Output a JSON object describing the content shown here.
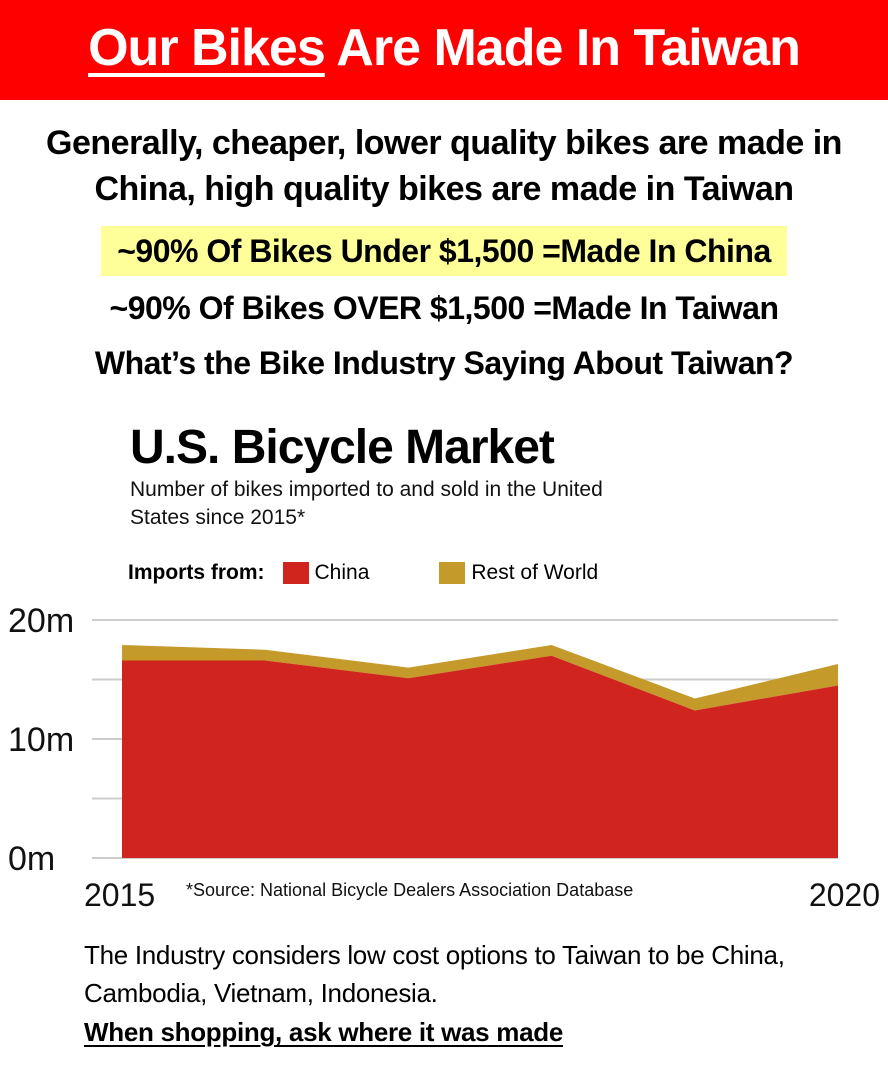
{
  "banner": {
    "title_underlined": "Our Bikes",
    "title_rest": "Are Made In Taiwan"
  },
  "intro": "Generally, cheaper, lower quality bikes are made in China, high quality bikes are made in Taiwan",
  "highlight": "~90% Of Bikes Under $1,500 =Made In China",
  "line2": "~90% Of Bikes OVER $1,500 =Made In Taiwan",
  "line3": "What’s the Bike Industry Saying About Taiwan?",
  "footer": {
    "text": "The Industry considers low cost options to Taiwan to be China, Cambodia, Vietnam, Indonesia.",
    "cta": "When shopping, ask where it was made"
  },
  "colors": {
    "banner": "#ff0000",
    "china": "#d0251e",
    "rest": "#c49a2b",
    "highlight": "#ffff99"
  },
  "chart_data": {
    "type": "area",
    "title": "U.S. Bicycle Market",
    "subtitle": "Number of bikes imported to and sold in the United States since 2015*",
    "legend_title": "Imports from:",
    "legend_placement": "top-left",
    "ylim": [
      0,
      20000000
    ],
    "yticks": [
      0,
      5000000,
      10000000,
      15000000,
      20000000
    ],
    "ytick_labels": [
      "0m",
      "",
      "10m",
      "",
      "20m"
    ],
    "x_start_label": "2015",
    "x_end_label": "2020",
    "source": "*Source: National Bicycle Dealers Association Database",
    "grid": true,
    "stacked": true,
    "x": [
      2015,
      2016,
      2017,
      2018,
      2019,
      2020
    ],
    "series": [
      {
        "name": "China",
        "color": "#d0251e",
        "values": [
          16600000,
          16600000,
          15100000,
          17000000,
          12400000,
          14500000
        ]
      },
      {
        "name": "Rest of World",
        "color": "#c49a2b",
        "values": [
          1300000,
          900000,
          900000,
          900000,
          1000000,
          1800000
        ]
      }
    ]
  }
}
